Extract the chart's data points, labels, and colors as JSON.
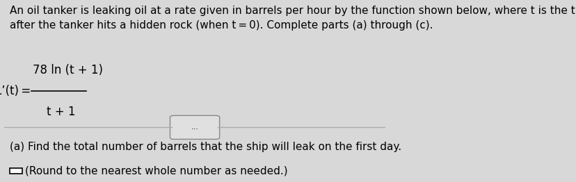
{
  "bg_color": "#d8d8d8",
  "panel_color": "#e8e8e8",
  "top_text": "An oil tanker is leaking oil at a rate given in barrels per hour by the function shown below, where t is the time in hours\nafter the tanker hits a hidden rock (when t = 0). Complete parts (a) through (c).",
  "formula_label": "L’(t) =",
  "formula_numerator": "78 ln (t + 1)",
  "formula_denominator": "t + 1",
  "divider_dots": "...",
  "part_a_text": "(a) Find the total number of barrels that the ship will leak on the first day.",
  "round_text": "(Round to the nearest whole number as needed.)",
  "checkbox_size": 14,
  "font_size_main": 11,
  "font_size_formula": 12
}
